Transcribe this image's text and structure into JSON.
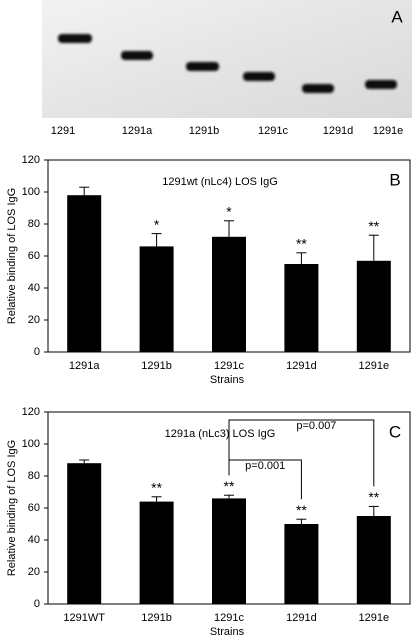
{
  "blot": {
    "panel_label": "A",
    "lanes": [
      "1291",
      "1291a",
      "1291b",
      "1291c",
      "1291d",
      "1291e"
    ]
  },
  "chart_data": [
    {
      "type": "bar",
      "panel_label": "B",
      "title": "1291wt (nLc4) LOS IgG",
      "ylabel": "Relative binding of LOS IgG",
      "xlabel": "Strains",
      "categories": [
        "1291a",
        "1291b",
        "1291c",
        "1291d",
        "1291e"
      ],
      "values": [
        98,
        66,
        72,
        55,
        57
      ],
      "errors": [
        5,
        8,
        10,
        7,
        16
      ],
      "annotations": [
        null,
        "*",
        "*",
        "**",
        "**"
      ],
      "color": "#000000",
      "ylim": [
        0,
        120
      ],
      "yticks": [
        0,
        20,
        40,
        60,
        80,
        100,
        120
      ]
    },
    {
      "type": "bar",
      "panel_label": "C",
      "title": "1291a (nLc3) LOS IgG",
      "ylabel": "Relative binding of LOS IgG",
      "xlabel": "Strains",
      "categories": [
        "1291WT",
        "1291b",
        "1291c",
        "1291d",
        "1291e"
      ],
      "values": [
        88,
        64,
        66,
        50,
        55
      ],
      "errors": [
        2,
        3,
        2,
        3,
        6
      ],
      "annotations": [
        null,
        "**",
        "**",
        "**",
        "**"
      ],
      "brackets": [
        {
          "from": "1291c",
          "to": "1291d",
          "label": "p=0.001"
        },
        {
          "from": "1291c",
          "to": "1291e",
          "label": "p=0.007"
        }
      ],
      "color": "#000000",
      "ylim": [
        0,
        120
      ],
      "yticks": [
        0,
        20,
        40,
        60,
        80,
        100,
        120
      ]
    }
  ]
}
